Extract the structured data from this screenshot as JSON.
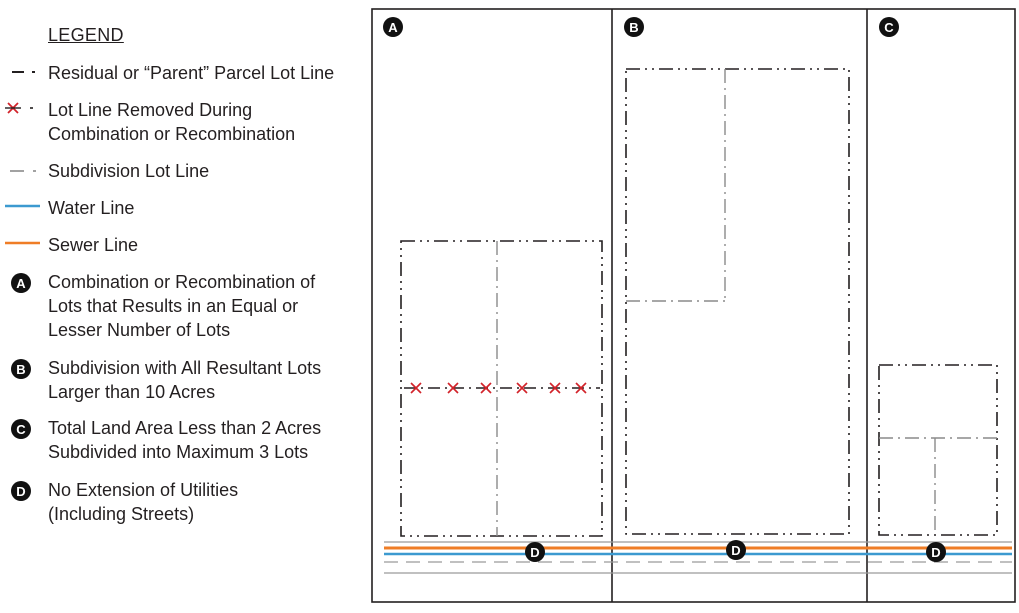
{
  "legend": {
    "title": "LEGEND",
    "items": [
      {
        "key": "parent",
        "symbol": "dash-dot",
        "label": "Residual or “Parent” Parcel Lot Line"
      },
      {
        "key": "removed",
        "symbol": "x-dash",
        "label1": "Lot Line Removed During",
        "label2": "Combination or Recombination"
      },
      {
        "key": "subdivision",
        "symbol": "dash-gray",
        "label": "Subdivision Lot Line"
      },
      {
        "key": "water",
        "symbol": "blue-line",
        "label": "Water Line"
      },
      {
        "key": "sewer",
        "symbol": "orange-line",
        "label": "Sewer Line"
      },
      {
        "key": "A",
        "symbol": "badge",
        "label1": "Combination or Recombination of",
        "label2": "Lots that Results in an Equal or",
        "label3": "Lesser Number of Lots"
      },
      {
        "key": "B",
        "symbol": "badge",
        "label1": "Subdivision with All Resultant Lots",
        "label2": "Larger than 10 Acres"
      },
      {
        "key": "C",
        "symbol": "badge",
        "label1": "Total Land Area Less than 2 Acres",
        "label2": "Subdivided into Maximum 3 Lots"
      },
      {
        "key": "D",
        "symbol": "badge",
        "label1": "No Extension of Utilities",
        "label2": "(Including Streets)"
      }
    ]
  },
  "panels": [
    {
      "badge": "A"
    },
    {
      "badge": "B"
    },
    {
      "badge": "C"
    }
  ],
  "utility_badge": "D",
  "colors": {
    "water": "#3c9ad0",
    "sewer": "#ef7d26",
    "removed": "#d2232a",
    "subdivision": "#8a8a8a",
    "line": "#231f20"
  }
}
